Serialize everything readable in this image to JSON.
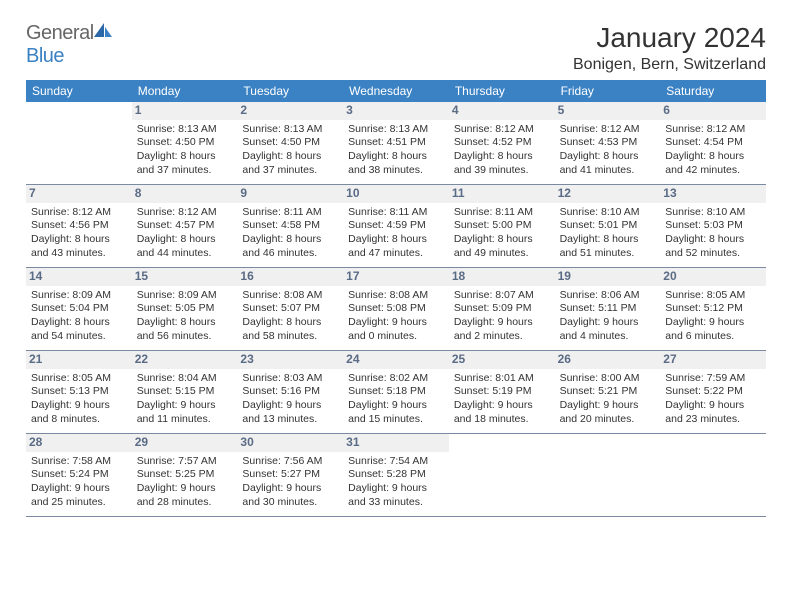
{
  "brand": {
    "part1": "General",
    "part2": "Blue"
  },
  "title": "January 2024",
  "location": "Bonigen, Bern, Switzerland",
  "colors": {
    "header_bg": "#3b82c4",
    "header_text": "#ffffff",
    "daynum_bg": "#f0f0f0",
    "daynum_text": "#5a6b85",
    "border": "#7a8aa0",
    "text": "#333333"
  },
  "dayNames": [
    "Sunday",
    "Monday",
    "Tuesday",
    "Wednesday",
    "Thursday",
    "Friday",
    "Saturday"
  ],
  "days": [
    null,
    {
      "n": "1",
      "sunrise": "Sunrise: 8:13 AM",
      "sunset": "Sunset: 4:50 PM",
      "daylight": "Daylight: 8 hours and 37 minutes."
    },
    {
      "n": "2",
      "sunrise": "Sunrise: 8:13 AM",
      "sunset": "Sunset: 4:50 PM",
      "daylight": "Daylight: 8 hours and 37 minutes."
    },
    {
      "n": "3",
      "sunrise": "Sunrise: 8:13 AM",
      "sunset": "Sunset: 4:51 PM",
      "daylight": "Daylight: 8 hours and 38 minutes."
    },
    {
      "n": "4",
      "sunrise": "Sunrise: 8:12 AM",
      "sunset": "Sunset: 4:52 PM",
      "daylight": "Daylight: 8 hours and 39 minutes."
    },
    {
      "n": "5",
      "sunrise": "Sunrise: 8:12 AM",
      "sunset": "Sunset: 4:53 PM",
      "daylight": "Daylight: 8 hours and 41 minutes."
    },
    {
      "n": "6",
      "sunrise": "Sunrise: 8:12 AM",
      "sunset": "Sunset: 4:54 PM",
      "daylight": "Daylight: 8 hours and 42 minutes."
    },
    {
      "n": "7",
      "sunrise": "Sunrise: 8:12 AM",
      "sunset": "Sunset: 4:56 PM",
      "daylight": "Daylight: 8 hours and 43 minutes."
    },
    {
      "n": "8",
      "sunrise": "Sunrise: 8:12 AM",
      "sunset": "Sunset: 4:57 PM",
      "daylight": "Daylight: 8 hours and 44 minutes."
    },
    {
      "n": "9",
      "sunrise": "Sunrise: 8:11 AM",
      "sunset": "Sunset: 4:58 PM",
      "daylight": "Daylight: 8 hours and 46 minutes."
    },
    {
      "n": "10",
      "sunrise": "Sunrise: 8:11 AM",
      "sunset": "Sunset: 4:59 PM",
      "daylight": "Daylight: 8 hours and 47 minutes."
    },
    {
      "n": "11",
      "sunrise": "Sunrise: 8:11 AM",
      "sunset": "Sunset: 5:00 PM",
      "daylight": "Daylight: 8 hours and 49 minutes."
    },
    {
      "n": "12",
      "sunrise": "Sunrise: 8:10 AM",
      "sunset": "Sunset: 5:01 PM",
      "daylight": "Daylight: 8 hours and 51 minutes."
    },
    {
      "n": "13",
      "sunrise": "Sunrise: 8:10 AM",
      "sunset": "Sunset: 5:03 PM",
      "daylight": "Daylight: 8 hours and 52 minutes."
    },
    {
      "n": "14",
      "sunrise": "Sunrise: 8:09 AM",
      "sunset": "Sunset: 5:04 PM",
      "daylight": "Daylight: 8 hours and 54 minutes."
    },
    {
      "n": "15",
      "sunrise": "Sunrise: 8:09 AM",
      "sunset": "Sunset: 5:05 PM",
      "daylight": "Daylight: 8 hours and 56 minutes."
    },
    {
      "n": "16",
      "sunrise": "Sunrise: 8:08 AM",
      "sunset": "Sunset: 5:07 PM",
      "daylight": "Daylight: 8 hours and 58 minutes."
    },
    {
      "n": "17",
      "sunrise": "Sunrise: 8:08 AM",
      "sunset": "Sunset: 5:08 PM",
      "daylight": "Daylight: 9 hours and 0 minutes."
    },
    {
      "n": "18",
      "sunrise": "Sunrise: 8:07 AM",
      "sunset": "Sunset: 5:09 PM",
      "daylight": "Daylight: 9 hours and 2 minutes."
    },
    {
      "n": "19",
      "sunrise": "Sunrise: 8:06 AM",
      "sunset": "Sunset: 5:11 PM",
      "daylight": "Daylight: 9 hours and 4 minutes."
    },
    {
      "n": "20",
      "sunrise": "Sunrise: 8:05 AM",
      "sunset": "Sunset: 5:12 PM",
      "daylight": "Daylight: 9 hours and 6 minutes."
    },
    {
      "n": "21",
      "sunrise": "Sunrise: 8:05 AM",
      "sunset": "Sunset: 5:13 PM",
      "daylight": "Daylight: 9 hours and 8 minutes."
    },
    {
      "n": "22",
      "sunrise": "Sunrise: 8:04 AM",
      "sunset": "Sunset: 5:15 PM",
      "daylight": "Daylight: 9 hours and 11 minutes."
    },
    {
      "n": "23",
      "sunrise": "Sunrise: 8:03 AM",
      "sunset": "Sunset: 5:16 PM",
      "daylight": "Daylight: 9 hours and 13 minutes."
    },
    {
      "n": "24",
      "sunrise": "Sunrise: 8:02 AM",
      "sunset": "Sunset: 5:18 PM",
      "daylight": "Daylight: 9 hours and 15 minutes."
    },
    {
      "n": "25",
      "sunrise": "Sunrise: 8:01 AM",
      "sunset": "Sunset: 5:19 PM",
      "daylight": "Daylight: 9 hours and 18 minutes."
    },
    {
      "n": "26",
      "sunrise": "Sunrise: 8:00 AM",
      "sunset": "Sunset: 5:21 PM",
      "daylight": "Daylight: 9 hours and 20 minutes."
    },
    {
      "n": "27",
      "sunrise": "Sunrise: 7:59 AM",
      "sunset": "Sunset: 5:22 PM",
      "daylight": "Daylight: 9 hours and 23 minutes."
    },
    {
      "n": "28",
      "sunrise": "Sunrise: 7:58 AM",
      "sunset": "Sunset: 5:24 PM",
      "daylight": "Daylight: 9 hours and 25 minutes."
    },
    {
      "n": "29",
      "sunrise": "Sunrise: 7:57 AM",
      "sunset": "Sunset: 5:25 PM",
      "daylight": "Daylight: 9 hours and 28 minutes."
    },
    {
      "n": "30",
      "sunrise": "Sunrise: 7:56 AM",
      "sunset": "Sunset: 5:27 PM",
      "daylight": "Daylight: 9 hours and 30 minutes."
    },
    {
      "n": "31",
      "sunrise": "Sunrise: 7:54 AM",
      "sunset": "Sunset: 5:28 PM",
      "daylight": "Daylight: 9 hours and 33 minutes."
    },
    null,
    null,
    null
  ]
}
